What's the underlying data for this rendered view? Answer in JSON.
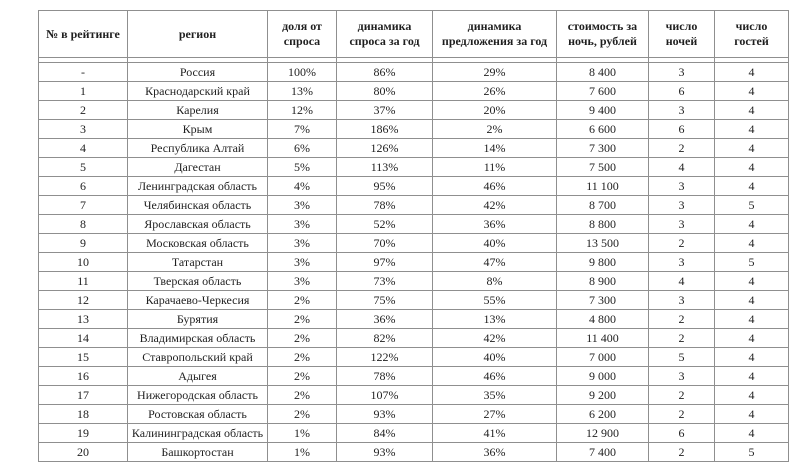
{
  "table": {
    "columns": [
      "№ в рейтинге",
      "регион",
      "доля от спроса",
      "динамика спроса за год",
      "динамика предложения за год",
      "стоимость за ночь, рублей",
      "число ночей",
      "число гостей"
    ],
    "rows": [
      [
        "-",
        "Россия",
        "100%",
        "86%",
        "29%",
        "8 400",
        "3",
        "4"
      ],
      [
        "1",
        "Краснодарский край",
        "13%",
        "80%",
        "26%",
        "7 600",
        "6",
        "4"
      ],
      [
        "2",
        "Карелия",
        "12%",
        "37%",
        "20%",
        "9 400",
        "3",
        "4"
      ],
      [
        "3",
        "Крым",
        "7%",
        "186%",
        "2%",
        "6 600",
        "6",
        "4"
      ],
      [
        "4",
        "Республика Алтай",
        "6%",
        "126%",
        "14%",
        "7 300",
        "2",
        "4"
      ],
      [
        "5",
        "Дагестан",
        "5%",
        "113%",
        "11%",
        "7 500",
        "4",
        "4"
      ],
      [
        "6",
        "Ленинградская область",
        "4%",
        "95%",
        "46%",
        "11 100",
        "3",
        "4"
      ],
      [
        "7",
        "Челябинская область",
        "3%",
        "78%",
        "42%",
        "8 700",
        "3",
        "5"
      ],
      [
        "8",
        "Ярославская область",
        "3%",
        "52%",
        "36%",
        "8 800",
        "3",
        "4"
      ],
      [
        "9",
        "Московская область",
        "3%",
        "70%",
        "40%",
        "13 500",
        "2",
        "4"
      ],
      [
        "10",
        "Татарстан",
        "3%",
        "97%",
        "47%",
        "9 800",
        "3",
        "5"
      ],
      [
        "11",
        "Тверская область",
        "3%",
        "73%",
        "8%",
        "8 900",
        "4",
        "4"
      ],
      [
        "12",
        "Карачаево-Черкесия",
        "2%",
        "75%",
        "55%",
        "7 300",
        "3",
        "4"
      ],
      [
        "13",
        "Бурятия",
        "2%",
        "36%",
        "13%",
        "4 800",
        "2",
        "4"
      ],
      [
        "14",
        "Владимирская область",
        "2%",
        "82%",
        "42%",
        "11 400",
        "2",
        "4"
      ],
      [
        "15",
        "Ставропольский край",
        "2%",
        "122%",
        "40%",
        "7 000",
        "5",
        "4"
      ],
      [
        "16",
        "Адыгея",
        "2%",
        "78%",
        "46%",
        "9 000",
        "3",
        "4"
      ],
      [
        "17",
        "Нижегородская область",
        "2%",
        "107%",
        "35%",
        "9 200",
        "2",
        "4"
      ],
      [
        "18",
        "Ростовская область",
        "2%",
        "93%",
        "27%",
        "6 200",
        "2",
        "4"
      ],
      [
        "19",
        "Калининградская область",
        "1%",
        "84%",
        "41%",
        "12 900",
        "6",
        "4"
      ],
      [
        "20",
        "Башкортостан",
        "1%",
        "93%",
        "36%",
        "7 400",
        "2",
        "5"
      ]
    ],
    "border_color": "#8f8f8f",
    "text_color": "#1f1f1f",
    "background_color": "#ffffff"
  }
}
